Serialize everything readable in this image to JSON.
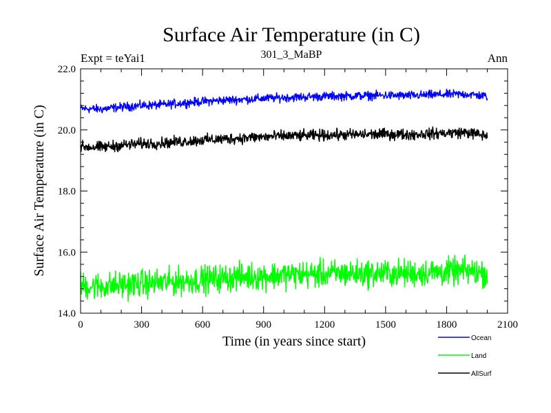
{
  "chart_data": {
    "type": "line",
    "title": "Surface Air Temperature (in C)",
    "subtitle": "301_3_MaBP",
    "left_label": "Expt = teYai1",
    "right_label": "Ann",
    "xlabel": "Time (in years since start)",
    "ylabel": "Surface Air Temperature (in C)",
    "xlim": [
      0,
      2100
    ],
    "ylim": [
      14.0,
      22.0
    ],
    "x_ticks": [
      "0",
      "300",
      "600",
      "900",
      "1200",
      "1500",
      "1800",
      "2100"
    ],
    "y_ticks": [
      "14.0",
      "16.0",
      "18.0",
      "20.0",
      "22.0"
    ],
    "legend_position": "bottom-right",
    "series": [
      {
        "name": "Ocean",
        "color": "#0000ff",
        "x": [
          0,
          100,
          200,
          300,
          400,
          500,
          600,
          700,
          800,
          900,
          1000,
          1100,
          1200,
          1300,
          1400,
          1500,
          1600,
          1700,
          1800,
          1900,
          2000
        ],
        "values": [
          20.7,
          20.68,
          20.75,
          20.8,
          20.82,
          20.88,
          20.93,
          20.97,
          21.0,
          21.03,
          21.06,
          21.08,
          21.1,
          21.11,
          21.12,
          21.13,
          21.12,
          21.14,
          21.16,
          21.17,
          21.1
        ],
        "noise": 0.07
      },
      {
        "name": "Land",
        "color": "#00ff00",
        "x": [
          0,
          100,
          200,
          300,
          400,
          500,
          600,
          700,
          800,
          900,
          1000,
          1100,
          1200,
          1300,
          1400,
          1500,
          1600,
          1700,
          1800,
          1900,
          2000
        ],
        "values": [
          14.9,
          14.88,
          14.92,
          14.97,
          15.0,
          15.05,
          15.1,
          15.15,
          15.2,
          15.22,
          15.25,
          15.27,
          15.28,
          15.3,
          15.3,
          15.31,
          15.3,
          15.33,
          15.35,
          15.38,
          15.3
        ],
        "noise": 0.22
      },
      {
        "name": "AllSurf",
        "color": "#000000",
        "x": [
          0,
          100,
          200,
          300,
          400,
          500,
          600,
          700,
          800,
          900,
          1000,
          1100,
          1200,
          1300,
          1400,
          1500,
          1600,
          1700,
          1800,
          1900,
          2000
        ],
        "values": [
          19.45,
          19.43,
          19.5,
          19.55,
          19.57,
          19.62,
          19.67,
          19.7,
          19.74,
          19.77,
          19.8,
          19.81,
          19.83,
          19.84,
          19.85,
          19.86,
          19.85,
          19.87,
          19.9,
          19.92,
          19.8
        ],
        "noise": 0.09
      }
    ]
  }
}
